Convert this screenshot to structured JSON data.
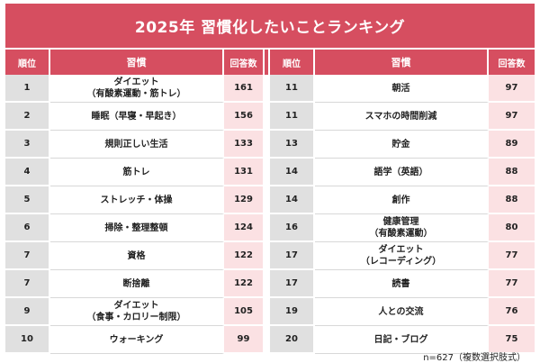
{
  "title": "2025年 習慣化したいことランキング",
  "headers": {
    "rank": "順位",
    "item": "習慣",
    "count": "回答数"
  },
  "left": [
    {
      "rank": "1",
      "item": "ダイエット\n（有酸素運動・筋トレ）",
      "count": "161"
    },
    {
      "rank": "2",
      "item": "睡眠（早寝・早起き）",
      "count": "156"
    },
    {
      "rank": "3",
      "item": "規則正しい生活",
      "count": "133"
    },
    {
      "rank": "4",
      "item": "筋トレ",
      "count": "131"
    },
    {
      "rank": "5",
      "item": "ストレッチ・体操",
      "count": "129"
    },
    {
      "rank": "6",
      "item": "掃除・整理整頓",
      "count": "124"
    },
    {
      "rank": "7",
      "item": "資格",
      "count": "122"
    },
    {
      "rank": "7",
      "item": "断捨離",
      "count": "122"
    },
    {
      "rank": "9",
      "item": "ダイエット\n（食事・カロリー制限）",
      "count": "105"
    },
    {
      "rank": "10",
      "item": "ウォーキング",
      "count": "99"
    }
  ],
  "right": [
    {
      "rank": "11",
      "item": "朝活",
      "count": "97"
    },
    {
      "rank": "11",
      "item": "スマホの時間削減",
      "count": "97"
    },
    {
      "rank": "13",
      "item": "貯金",
      "count": "89"
    },
    {
      "rank": "14",
      "item": "語学（英語）",
      "count": "88"
    },
    {
      "rank": "14",
      "item": "創作",
      "count": "88"
    },
    {
      "rank": "16",
      "item": "健康管理\n（有酸素運動）",
      "count": "80"
    },
    {
      "rank": "17",
      "item": "ダイエット\n（レコーディング）",
      "count": "77"
    },
    {
      "rank": "17",
      "item": "読書",
      "count": "77"
    },
    {
      "rank": "19",
      "item": "人との交流",
      "count": "76"
    },
    {
      "rank": "20",
      "item": "日記・ブログ",
      "count": "75"
    }
  ],
  "footnote": "n=627（複数選択肢式）",
  "colors": {
    "accent": "#d64e60",
    "rank_bg": "#e0e0e0",
    "count_bg": "#fbe1e3"
  }
}
